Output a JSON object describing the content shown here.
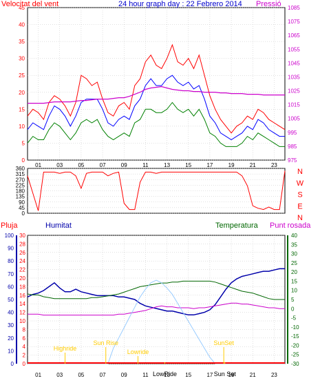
{
  "title": "24 hour graph day : 22 Febrero 2014",
  "colors": {
    "wind": "#ff0000",
    "wind_avg": "#0000ff",
    "wind_low": "#008000",
    "pressure": "#cc00cc",
    "direction": "#ff0000",
    "humidity": "#0000aa",
    "temperature": "#006600",
    "dewpoint": "#cc00cc",
    "rain": "#ff0000",
    "solar": "#99ccff",
    "marker": "#ffcc00",
    "frame": "#000000",
    "grid": "#c0c0c0"
  },
  "chart_data": [
    {
      "type": "line",
      "panel": "wind-pressure",
      "y_left_label": "Velocitat del vent",
      "y_right_label": "Pressió",
      "x_ticks": [
        "01",
        "03",
        "05",
        "07",
        "09",
        "11",
        "13",
        "15",
        "17",
        "19",
        "21",
        "23"
      ],
      "ylim_left": [
        0,
        45
      ],
      "ylim_right": [
        975,
        1085
      ],
      "y_ticks_left": [
        "0",
        "5",
        "10",
        "15",
        "20",
        "25",
        "30",
        "35",
        "40",
        "45"
      ],
      "y_ticks_right": [
        "975",
        "980",
        "985",
        "990",
        "995",
        "1000",
        "1005",
        "1010",
        "1015",
        "1020",
        "1025",
        "1030",
        "1035",
        "1040",
        "1045",
        "1050",
        "1055",
        "1060",
        "1065",
        "1070",
        "1075",
        "1080",
        "1085"
      ],
      "x_hours": [
        0,
        0.5,
        1,
        1.5,
        2,
        2.5,
        3,
        3.5,
        4,
        4.5,
        5,
        5.5,
        6,
        6.5,
        7,
        7.5,
        8,
        8.5,
        9,
        9.5,
        10,
        10.5,
        11,
        11.5,
        12,
        12.5,
        13,
        13.5,
        14,
        14.5,
        15,
        15.5,
        16,
        16.5,
        17,
        17.5,
        18,
        18.5,
        19,
        19.5,
        20,
        20.5,
        21,
        21.5,
        22,
        22.5,
        23,
        23.5,
        24
      ],
      "series": [
        {
          "name": "gust",
          "values": [
            13,
            15,
            14,
            12,
            17,
            19,
            18,
            16,
            13,
            17,
            25,
            24,
            22,
            23,
            18,
            14,
            13,
            16,
            17,
            15,
            22,
            24,
            29,
            31,
            28,
            27,
            30,
            34,
            29,
            28,
            30,
            27,
            31,
            25,
            19,
            15,
            12,
            10,
            8,
            10,
            11,
            13,
            12,
            15,
            14,
            12,
            11,
            10,
            9
          ]
        },
        {
          "name": "average",
          "values": [
            9,
            11,
            10,
            9,
            13,
            16,
            15,
            13,
            10,
            13,
            17,
            18,
            18,
            18,
            15,
            11,
            10,
            12,
            13,
            12,
            16,
            18,
            22,
            24,
            22,
            22,
            24,
            25,
            23,
            22,
            23,
            21,
            22,
            18,
            13,
            11,
            8,
            7,
            6,
            7,
            8,
            10,
            9,
            12,
            11,
            9,
            8,
            7,
            7
          ]
        },
        {
          "name": "low",
          "values": [
            5,
            7,
            6,
            6,
            9,
            11,
            10,
            8,
            6,
            8,
            11,
            12,
            11,
            12,
            9,
            7,
            6,
            7,
            8,
            7,
            11,
            12,
            15,
            15,
            14,
            14,
            15,
            17,
            15,
            14,
            15,
            13,
            15,
            12,
            8,
            7,
            5,
            4,
            4,
            4,
            5,
            7,
            6,
            8,
            7,
            6,
            5,
            4,
            4
          ]
        },
        {
          "name": "pressure",
          "values": [
            1016,
            1016,
            1016,
            1016,
            1016.5,
            1017,
            1017,
            1017,
            1017,
            1017.5,
            1018,
            1018,
            1018.5,
            1019,
            1019,
            1019,
            1019.5,
            1020,
            1020,
            1021,
            1022.5,
            1024,
            1026,
            1027,
            1027.5,
            1028,
            1027,
            1026,
            1025.5,
            1025,
            1025,
            1024.5,
            1024.5,
            1024,
            1024,
            1024,
            1023.5,
            1023.5,
            1023,
            1023,
            1023,
            1022.5,
            1022.5,
            1022.5,
            1022,
            1022,
            1022,
            1022,
            1022
          ]
        }
      ]
    },
    {
      "type": "line",
      "panel": "wind-direction",
      "y_ticks_left": [
        "0",
        "45",
        "90",
        "135",
        "180",
        "225",
        "270",
        "315",
        "360"
      ],
      "ylim": [
        0,
        360
      ],
      "compass": [
        "N",
        "W",
        "S",
        "E",
        "N"
      ],
      "x_hours": [
        0,
        0.5,
        1,
        1.5,
        2,
        2.5,
        3,
        3.5,
        4,
        4.5,
        5,
        5.5,
        6,
        6.5,
        7,
        7.5,
        8,
        8.5,
        9,
        9.5,
        10,
        10.5,
        11,
        11.5,
        12,
        12.5,
        13,
        13.5,
        14,
        14.5,
        15,
        15.5,
        16,
        16.5,
        17,
        17.5,
        18,
        18.5,
        19,
        19.5,
        20,
        20.5,
        21,
        21.5,
        22,
        22.5,
        23,
        23.5,
        24
      ],
      "series": [
        {
          "name": "direction",
          "values": [
            300,
            160,
            20,
            330,
            330,
            330,
            320,
            330,
            330,
            300,
            200,
            320,
            330,
            330,
            330,
            300,
            320,
            330,
            80,
            30,
            30,
            250,
            330,
            330,
            320,
            330,
            330,
            330,
            330,
            330,
            330,
            330,
            330,
            330,
            330,
            330,
            330,
            330,
            330,
            330,
            300,
            220,
            60,
            40,
            30,
            50,
            30,
            30,
            340
          ]
        }
      ]
    },
    {
      "type": "line",
      "panel": "humidity-temperature",
      "labels": {
        "rain": "Pluja",
        "humidity": "Humitat",
        "temperature": "Temperatura",
        "dewpoint": "Punt rosada"
      },
      "x_ticks": [
        "01",
        "03",
        "05",
        "07",
        "09",
        "11",
        "13",
        "15",
        "17",
        "19",
        "21",
        "23"
      ],
      "y_ticks_rain": [
        "0",
        "2",
        "4",
        "6",
        "8",
        "10",
        "12",
        "14",
        "16",
        "18",
        "20",
        "22",
        "24",
        "26",
        "28",
        "30"
      ],
      "y_ticks_hum": [
        "0",
        "10",
        "20",
        "30",
        "40",
        "50",
        "60",
        "70",
        "80",
        "90",
        "100"
      ],
      "y_ticks_temp": [
        "-30",
        "-25",
        "-20",
        "-15",
        "-10",
        "-5",
        "0",
        "5",
        "10",
        "15",
        "20",
        "25",
        "30",
        "35",
        "40"
      ],
      "ylim_hum": [
        0,
        100
      ],
      "ylim_temp": [
        -30,
        40
      ],
      "annotations": [
        "Highride",
        "Sun Rise",
        "Lowride",
        "SunSet",
        "LowRide",
        "Sun Set"
      ],
      "x_hours": [
        0,
        0.5,
        1,
        1.5,
        2,
        2.5,
        3,
        3.5,
        4,
        4.5,
        5,
        5.5,
        6,
        6.5,
        7,
        7.5,
        8,
        8.5,
        9,
        9.5,
        10,
        10.5,
        11,
        11.5,
        12,
        12.5,
        13,
        13.5,
        14,
        14.5,
        15,
        15.5,
        16,
        16.5,
        17,
        17.5,
        18,
        18.5,
        19,
        19.5,
        20,
        20.5,
        21,
        21.5,
        22,
        22.5,
        23,
        23.5,
        24
      ],
      "series": [
        {
          "name": "humidity",
          "values": [
            52,
            54,
            55,
            57,
            60,
            63,
            59,
            56,
            56,
            58,
            56,
            55,
            54,
            53,
            53,
            53,
            53,
            52,
            52,
            51,
            50,
            47,
            45,
            44,
            43,
            42,
            41,
            41,
            40,
            39,
            38,
            38,
            39,
            40,
            42,
            46,
            52,
            58,
            63,
            66,
            68,
            69,
            70,
            71,
            72,
            72,
            73,
            74,
            74
          ]
        },
        {
          "name": "temperature",
          "values": [
            8,
            7.5,
            7.5,
            6.5,
            6,
            5.5,
            5.5,
            5.5,
            5.5,
            5.5,
            5.5,
            5.5,
            6,
            6,
            6.5,
            7,
            7.5,
            8,
            9,
            10,
            11,
            12,
            12.5,
            13,
            13.5,
            14,
            14,
            14.5,
            14.5,
            15,
            15,
            15,
            15,
            15,
            15,
            14.5,
            13.5,
            12.5,
            11.5,
            10.5,
            9.5,
            9,
            8.5,
            7.5,
            6.5,
            5.5,
            5,
            5,
            5
          ]
        },
        {
          "name": "dewpoint",
          "values": [
            -3,
            -3,
            -3,
            -3.5,
            -3.5,
            -3.5,
            -3.5,
            -3.5,
            -3.5,
            -3.5,
            -3.5,
            -3.5,
            -3.5,
            -3.5,
            -3.5,
            -3.5,
            -3.5,
            -3,
            -3,
            -2.5,
            -2,
            -1.5,
            -1,
            0,
            1,
            1.5,
            1,
            1,
            0.5,
            0.5,
            0.5,
            0,
            0.5,
            0.5,
            1,
            1.5,
            2,
            2.5,
            3,
            3,
            2.5,
            2.5,
            2,
            1.5,
            1,
            0.5,
            0.5,
            0,
            0
          ]
        },
        {
          "name": "solar",
          "values": [
            0,
            0,
            0,
            0,
            0,
            0,
            0,
            0,
            0,
            0,
            0,
            0,
            0,
            0,
            0,
            0,
            12,
            20,
            28,
            36,
            44,
            52,
            58,
            63,
            65,
            63,
            59,
            54,
            47,
            40,
            33,
            26,
            19,
            12,
            5,
            0,
            0,
            0,
            0,
            0,
            0,
            0,
            0,
            0,
            0,
            0,
            0,
            0,
            0
          ]
        }
      ]
    }
  ]
}
